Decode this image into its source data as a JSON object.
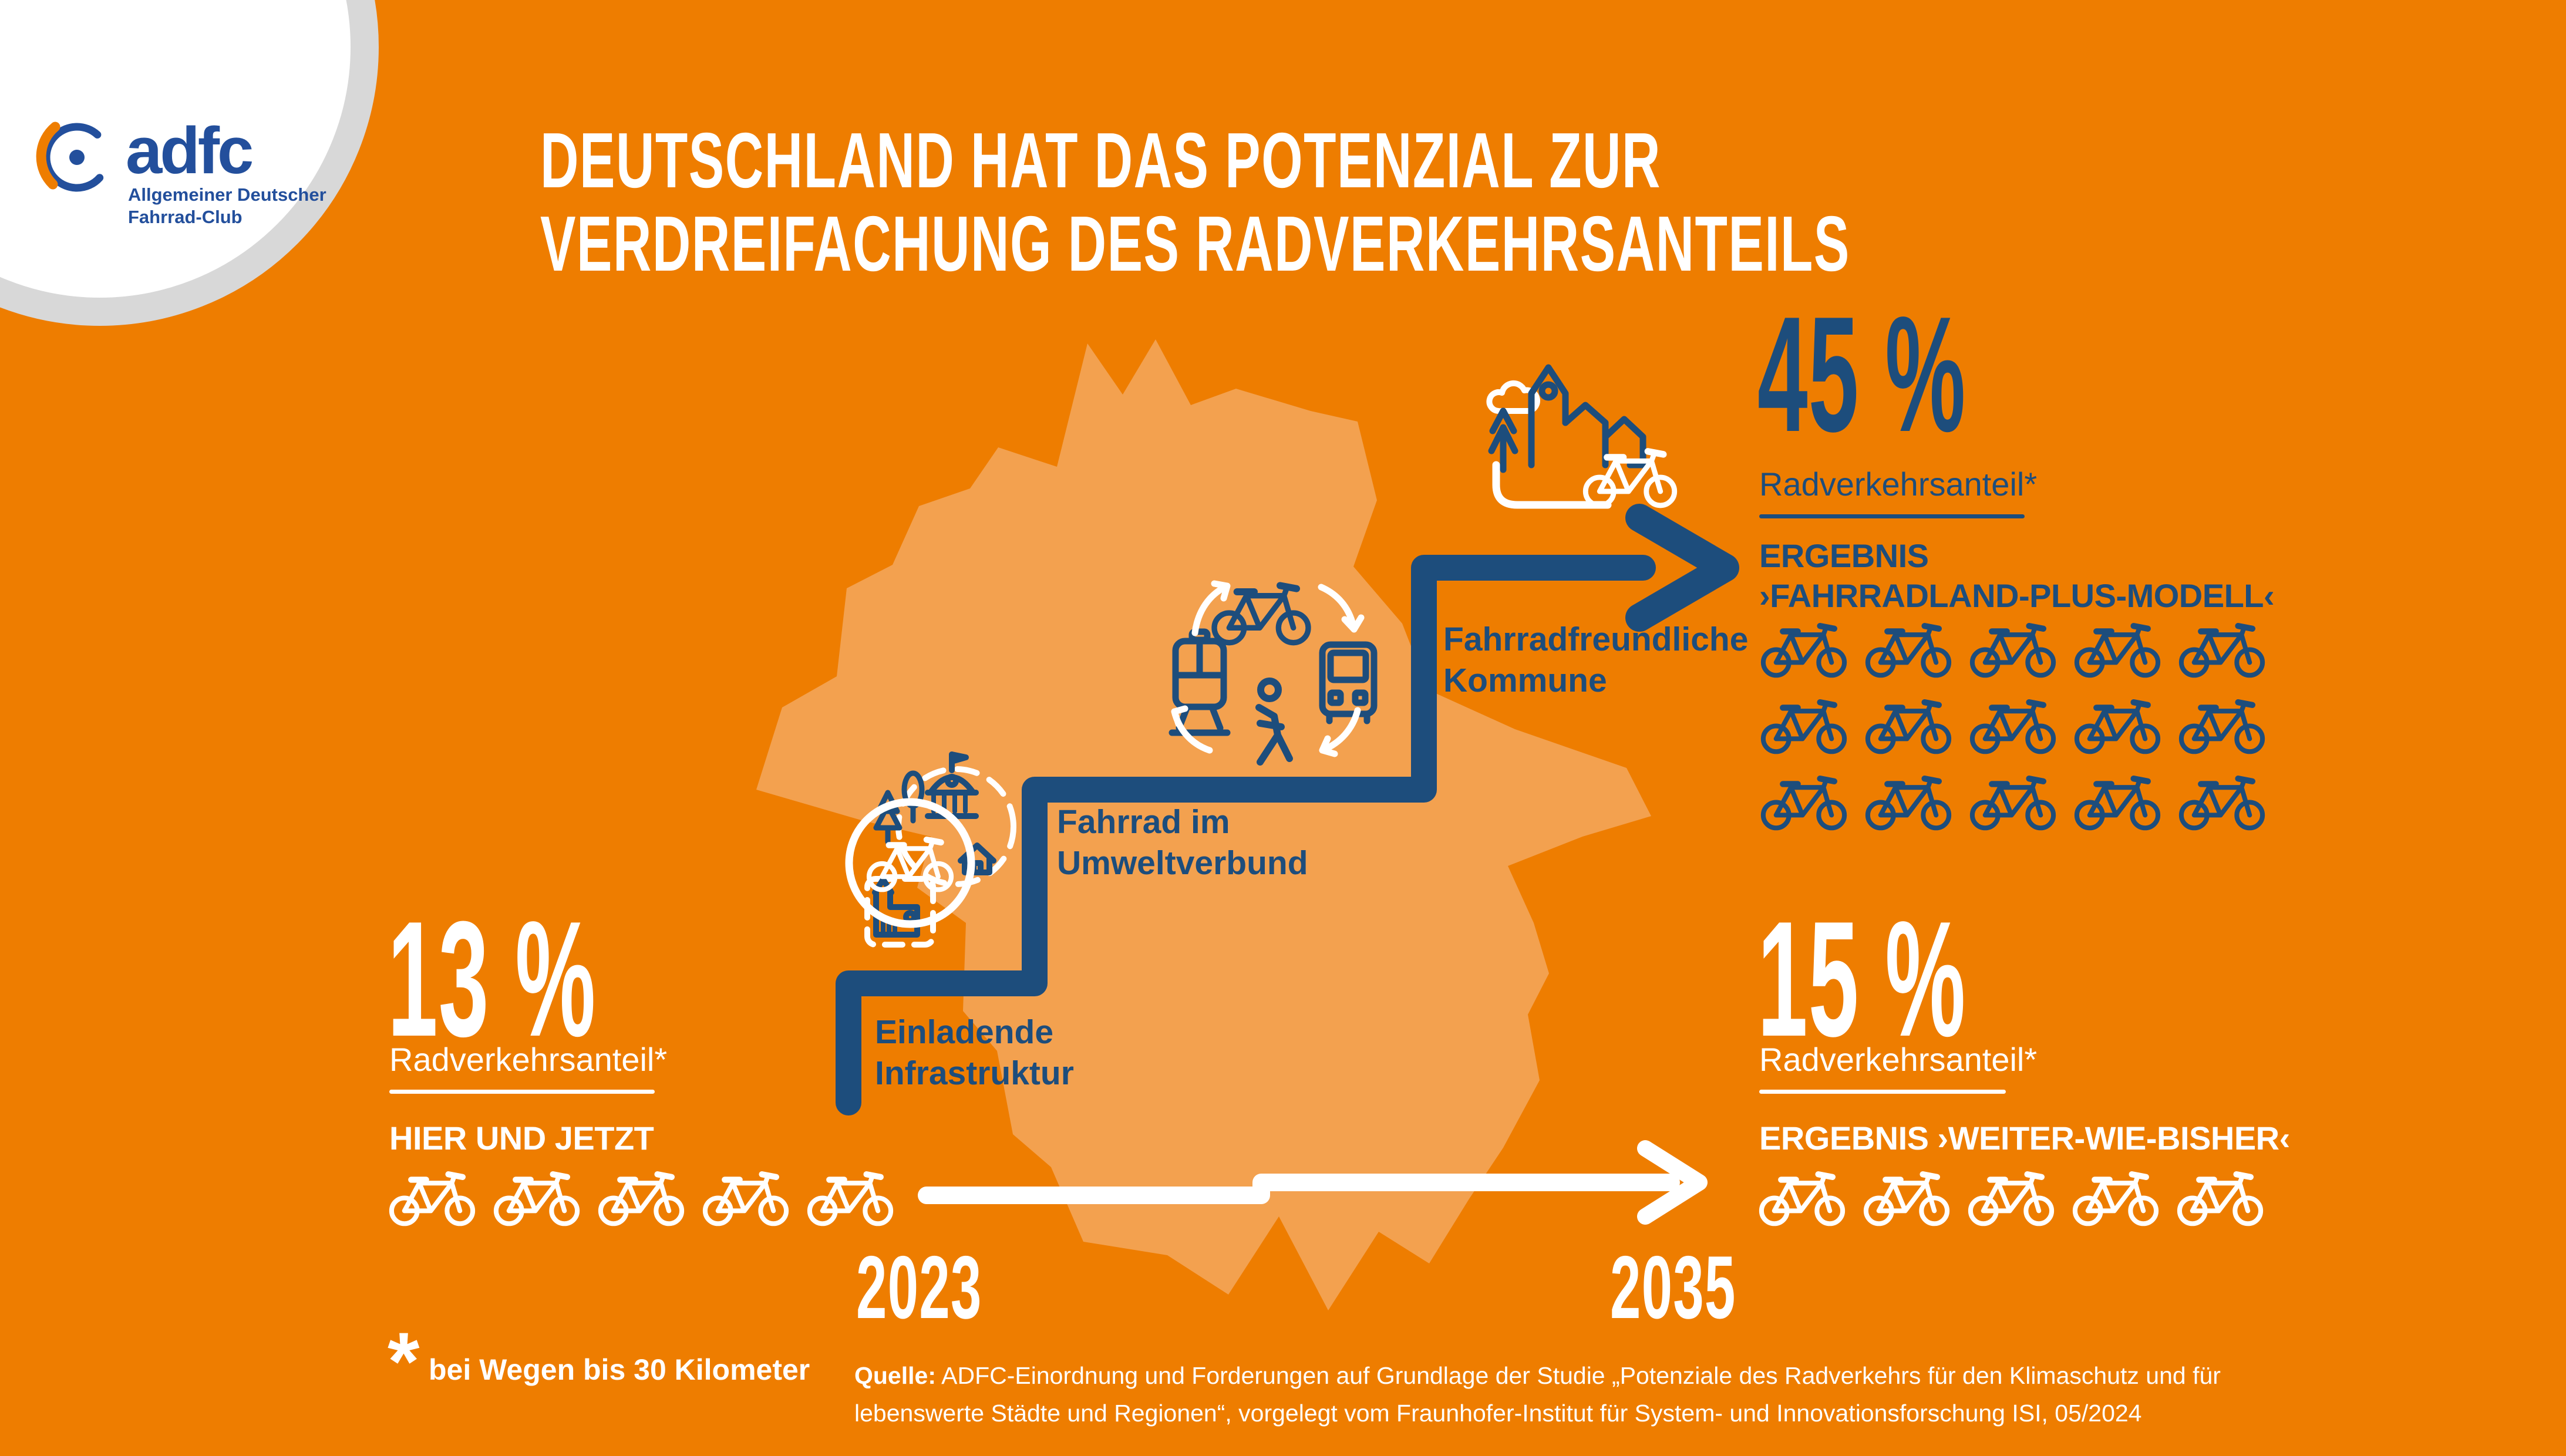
{
  "colors": {
    "background": "#ee7d00",
    "map": "#f3a14f",
    "blue": "#1d4d7c",
    "logo_blue": "#234f9c",
    "white": "#ffffff",
    "ring_gray": "#d8d8d8"
  },
  "logo": {
    "brand": "adfc",
    "subtitle_line1": "Allgemeiner Deutscher",
    "subtitle_line2": "Fahrrad-Club"
  },
  "title": {
    "line1": "DEUTSCHLAND HAT DAS POTENZIAL ZUR",
    "line2": "VERDREIFACHUNG DES RADVERKEHRSANTEILS"
  },
  "current": {
    "value": "13 %",
    "label": "Radverkehrsanteil*",
    "scenario": "HIER UND JETZT",
    "bikes": 5
  },
  "plus": {
    "value": "45 %",
    "label": "Radverkehrsanteil*",
    "scenario_line1": "ERGEBNIS",
    "scenario_line2": "›FAHRRADLAND-PLUS-MODELL‹",
    "bikes": 15,
    "bikes_per_row": 5
  },
  "bisher": {
    "value": "15 %",
    "label": "Radverkehrsanteil*",
    "scenario": "ERGEBNIS ›WEITER-WIE-BISHER‹",
    "bikes": 5
  },
  "steps": [
    {
      "label_line1": "Einladende",
      "label_line2": "Infrastruktur"
    },
    {
      "label_line1": "Fahrrad im",
      "label_line2": "Umweltverbund"
    },
    {
      "label_line1": "Fahrradfreundliche",
      "label_line2": "Kommune"
    }
  ],
  "timeline": {
    "start": "2023",
    "end": "2035"
  },
  "footnote": {
    "symbol": "*",
    "text": "bei Wegen bis 30 Kilometer"
  },
  "source": {
    "prefix": "Quelle:",
    "line1": "ADFC-Einordnung und Forderungen auf Grundlage der Studie „Potenziale des Radverkehrs für den Klimaschutz und für",
    "line2": "lebenswerte Städte und Regionen“, vorgelegt vom Fraunhofer-Institut für System- und Innovationsforschung ISI, 05/2024"
  },
  "chart_data": {
    "type": "pictogram",
    "title": "Deutschland hat das Potenzial zur Verdreifachung des Radverkehrsanteils",
    "categories": [
      "HIER UND JETZT (2023)",
      "ERGEBNIS ›WEITER-WIE-BISHER‹ (2035)",
      "ERGEBNIS ›FAHRRADLAND-PLUS-MODELL‹ (2035)"
    ],
    "values": [
      13,
      15,
      45
    ],
    "unit": "% Radverkehrsanteil (bei Wegen bis 30 Kilometer)",
    "icons_per_category": [
      5,
      5,
      15
    ],
    "steps": [
      "Einladende Infrastruktur",
      "Fahrrad im Umweltverbund",
      "Fahrradfreundliche Kommune"
    ],
    "timeline": [
      "2023",
      "2035"
    ]
  }
}
